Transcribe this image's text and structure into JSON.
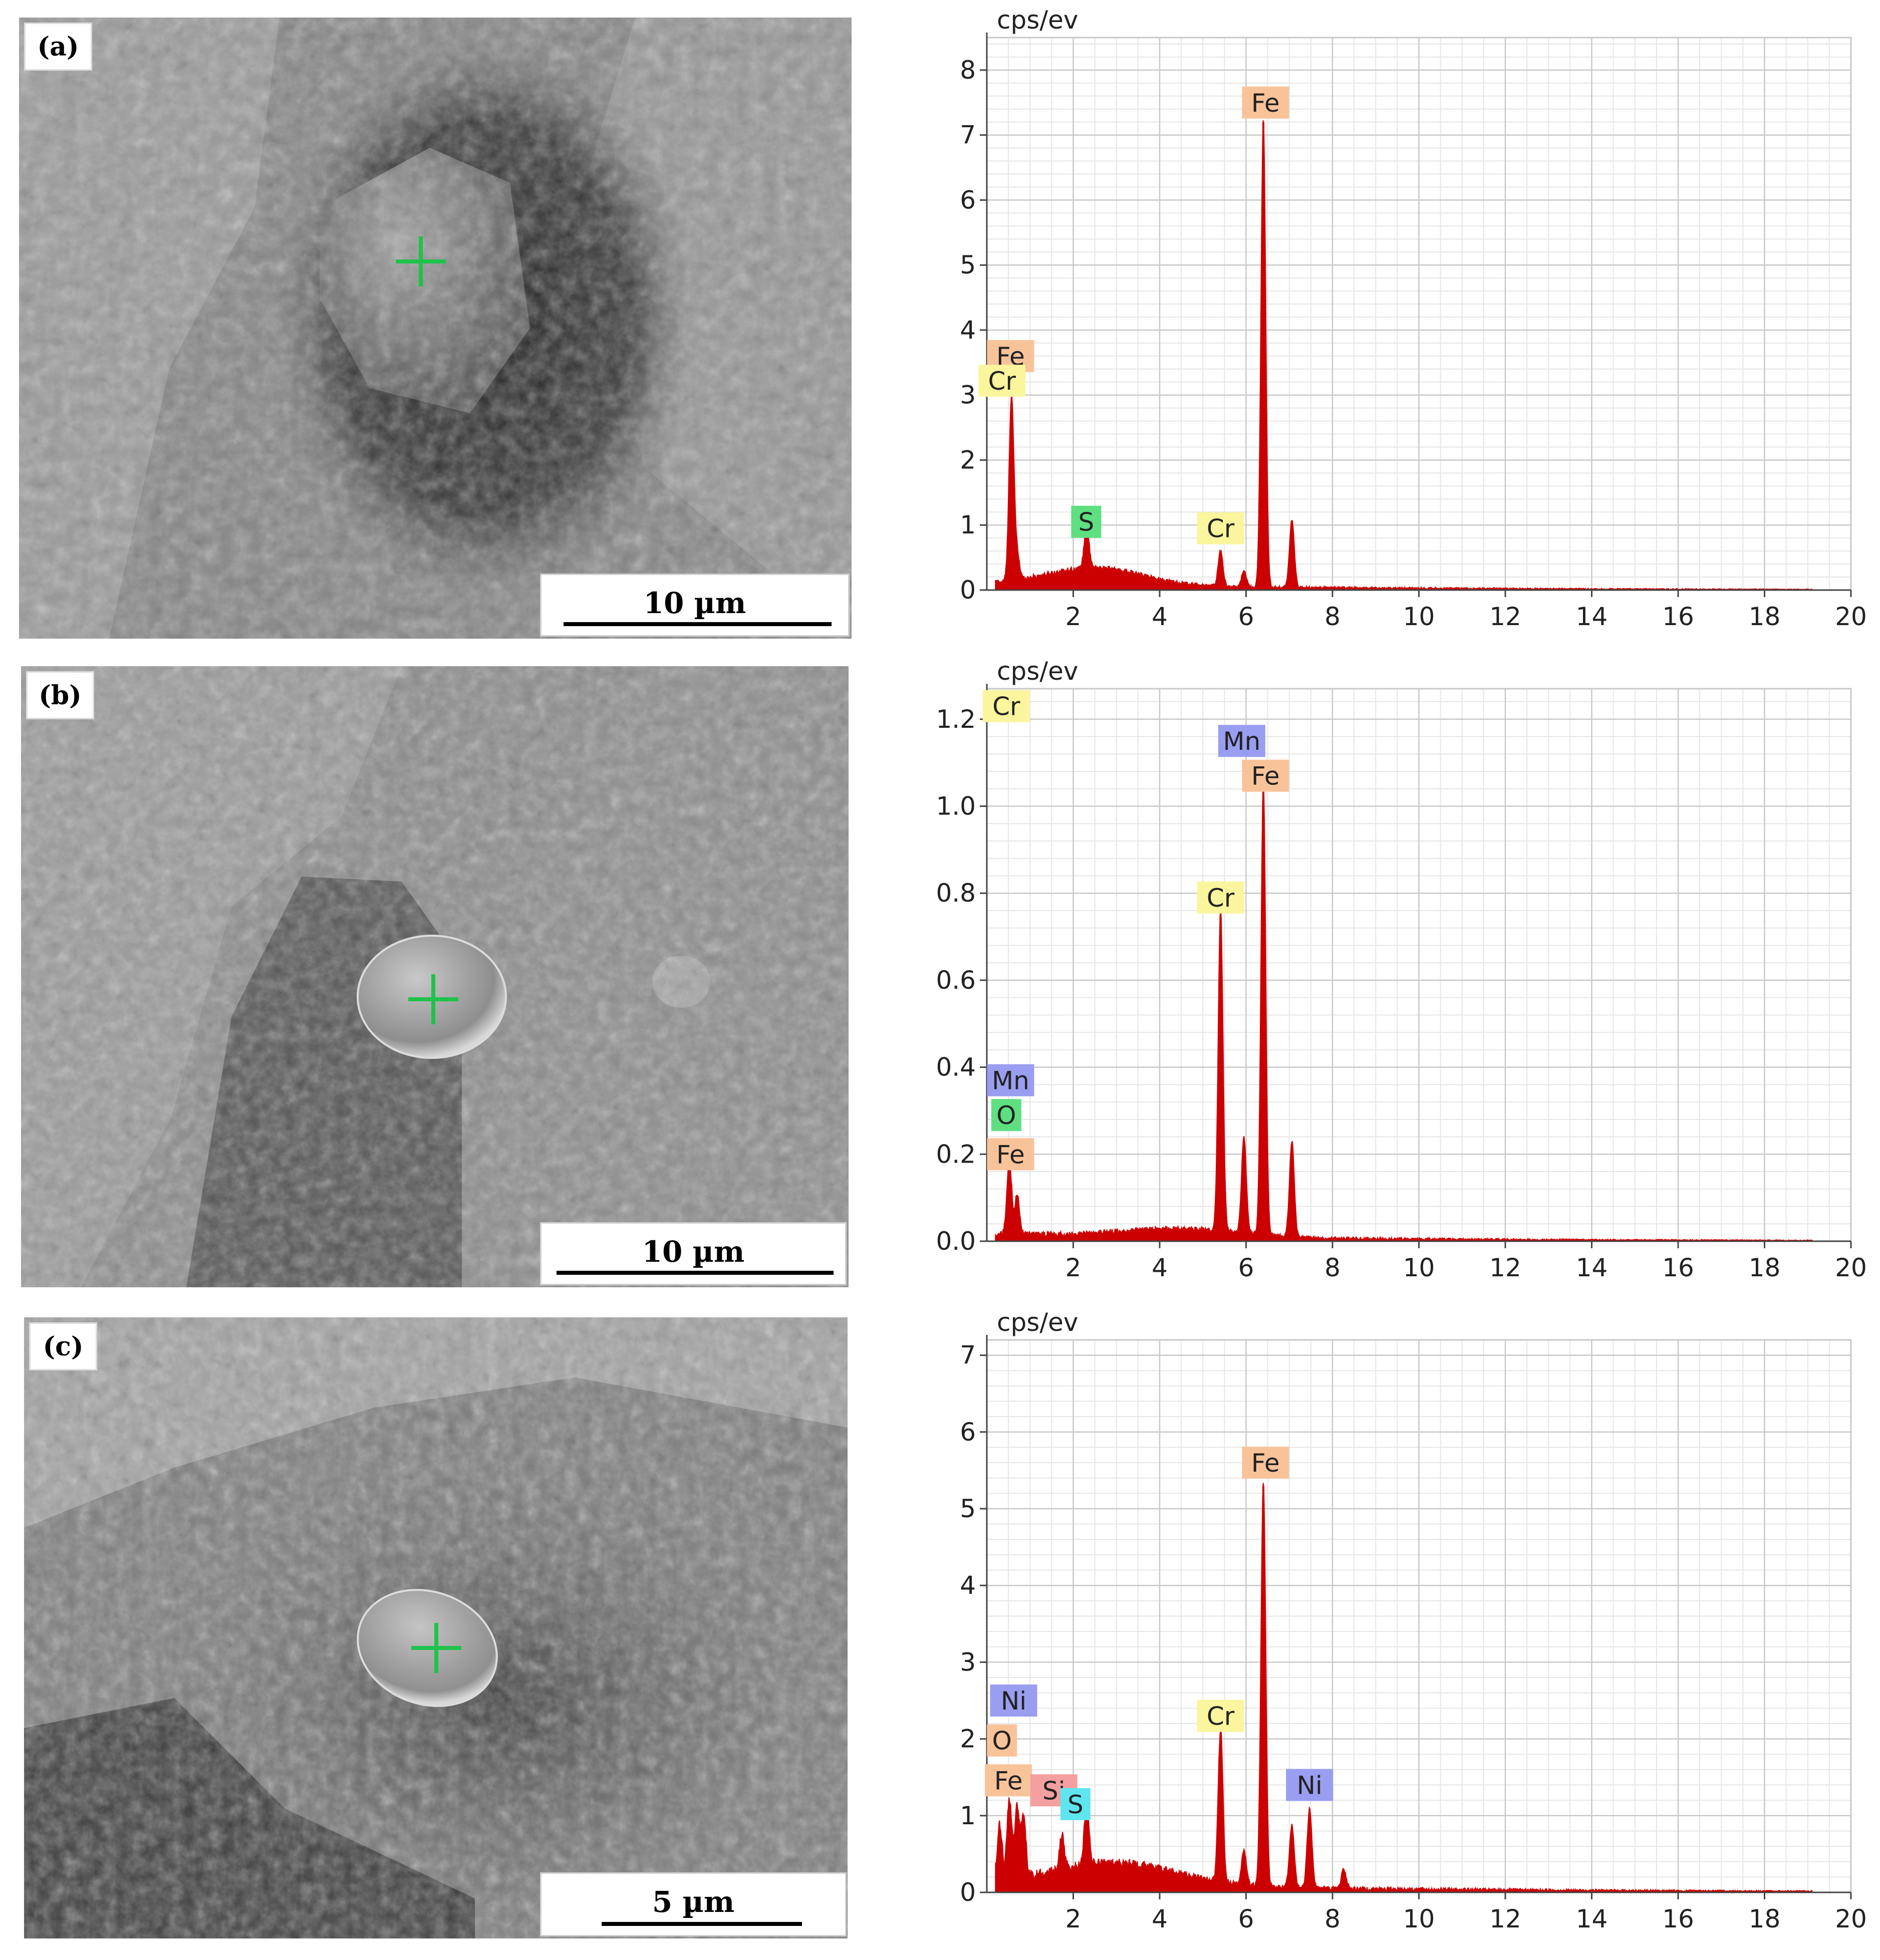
{
  "colors": {
    "spectrum": "#cc0000",
    "grid_major": "#c8c8c8",
    "grid_minor": "#e6e6e6",
    "axis": "#444444",
    "label_Fe": "#f9c39a",
    "label_Cr": "#fbf59e",
    "label_S_green": "#5ee080",
    "label_S_cyan": "#5fe5ef",
    "label_Mn": "#9a9ef0",
    "label_Ni": "#9a9ef0",
    "label_O_green": "#5ee080",
    "label_O_orange": "#f9c39a",
    "label_Si": "#f5a0a0",
    "crosshair": "#1fc24a"
  },
  "panels": [
    {
      "label": "(a)",
      "scalebar": "10 µm",
      "chart_data": {
        "type": "area",
        "ylabel": "cps/ev",
        "xlim": [
          0,
          20
        ],
        "ylim": [
          0,
          8.5
        ],
        "xticks": [
          2,
          4,
          6,
          8,
          10,
          12,
          14,
          16,
          18,
          20
        ],
        "xtick_labels": [
          "2",
          "4",
          "6",
          "8",
          "10",
          "12",
          "14",
          "16",
          "18",
          "20"
        ],
        "yticks": [
          0,
          1,
          2,
          3,
          4,
          5,
          6,
          7,
          8
        ],
        "ytick_labels": [
          "0",
          "1",
          "2",
          "3",
          "4",
          "5",
          "6",
          "7",
          "8"
        ],
        "background": 0.1,
        "background_hump": [
          {
            "center": 2.5,
            "height": 0.28,
            "width": 1.6
          }
        ],
        "peaks": [
          {
            "x": 0.57,
            "y": 2.85
          },
          {
            "x": 0.7,
            "y": 0.4
          },
          {
            "x": 2.31,
            "y": 0.65
          },
          {
            "x": 5.41,
            "y": 0.55
          },
          {
            "x": 5.95,
            "y": 0.25
          },
          {
            "x": 6.4,
            "y": 7.2
          },
          {
            "x": 7.06,
            "y": 1.05
          }
        ],
        "labels": [
          {
            "text": "Fe",
            "x": 0.55,
            "y": 3.6,
            "color": "label_Fe"
          },
          {
            "text": "Cr",
            "x": 0.35,
            "y": 3.22,
            "color": "label_Cr"
          },
          {
            "text": "S",
            "x": 2.3,
            "y": 1.05,
            "color": "label_S_green"
          },
          {
            "text": "Cr",
            "x": 5.41,
            "y": 0.95,
            "color": "label_Cr"
          },
          {
            "text": "Fe",
            "x": 6.45,
            "y": 7.5,
            "color": "label_Fe"
          }
        ]
      }
    },
    {
      "label": "(b)",
      "scalebar": "10 µm",
      "chart_data": {
        "type": "area",
        "ylabel": "cps/ev",
        "xlim": [
          0,
          20
        ],
        "ylim": [
          0,
          1.27
        ],
        "xticks": [
          2,
          4,
          6,
          8,
          10,
          12,
          14,
          16,
          18,
          20
        ],
        "xtick_labels": [
          "2",
          "4",
          "6",
          "8",
          "10",
          "12",
          "14",
          "16",
          "18",
          "20"
        ],
        "yticks": [
          0,
          0.2,
          0.4,
          0.6,
          0.8,
          1.0,
          1.2
        ],
        "ytick_labels": [
          "0.0",
          "0.2",
          "0.4",
          "0.6",
          "0.8",
          "1.0",
          "1.2"
        ],
        "background": 0.018,
        "background_hump": [
          {
            "center": 4.5,
            "height": 0.02,
            "width": 2.0
          }
        ],
        "peaks": [
          {
            "x": 0.52,
            "y": 0.17
          },
          {
            "x": 0.7,
            "y": 0.09
          },
          {
            "x": 5.41,
            "y": 0.74
          },
          {
            "x": 5.95,
            "y": 0.22
          },
          {
            "x": 6.4,
            "y": 1.04
          },
          {
            "x": 7.06,
            "y": 0.22
          }
        ],
        "labels": [
          {
            "text": "Cr",
            "x": 0.45,
            "y": 1.23,
            "color": "label_Cr"
          },
          {
            "text": "Mn",
            "x": 5.9,
            "y": 1.15,
            "color": "label_Mn"
          },
          {
            "text": "Fe",
            "x": 6.45,
            "y": 1.07,
            "color": "label_Fe"
          },
          {
            "text": "Cr",
            "x": 5.41,
            "y": 0.79,
            "color": "label_Cr"
          },
          {
            "text": "Mn",
            "x": 0.55,
            "y": 0.37,
            "color": "label_Mn"
          },
          {
            "text": "O",
            "x": 0.45,
            "y": 0.29,
            "color": "label_O_green"
          },
          {
            "text": "Fe",
            "x": 0.55,
            "y": 0.2,
            "color": "label_Fe"
          }
        ]
      }
    },
    {
      "label": "(c)",
      "scalebar": "5 µm",
      "chart_data": {
        "type": "area",
        "ylabel": "cps/ev",
        "xlim": [
          0,
          20
        ],
        "ylim": [
          0,
          7.2
        ],
        "xticks": [
          2,
          4,
          6,
          8,
          10,
          12,
          14,
          16,
          18,
          20
        ],
        "xtick_labels": [
          "2",
          "4",
          "6",
          "8",
          "10",
          "12",
          "14",
          "16",
          "18",
          "20"
        ],
        "yticks": [
          0,
          1,
          2,
          3,
          4,
          5,
          6,
          7
        ],
        "ytick_labels": [
          "0",
          "1",
          "2",
          "3",
          "4",
          "5",
          "6",
          "7"
        ],
        "background": 0.15,
        "background_hump": [
          {
            "center": 3.0,
            "height": 0.3,
            "width": 2.0
          }
        ],
        "peaks": [
          {
            "x": 0.3,
            "y": 0.7
          },
          {
            "x": 0.52,
            "y": 1.05
          },
          {
            "x": 0.7,
            "y": 0.9
          },
          {
            "x": 0.85,
            "y": 0.75
          },
          {
            "x": 1.74,
            "y": 0.45
          },
          {
            "x": 2.31,
            "y": 0.85
          },
          {
            "x": 5.41,
            "y": 2.0
          },
          {
            "x": 5.95,
            "y": 0.45
          },
          {
            "x": 6.4,
            "y": 5.3
          },
          {
            "x": 7.06,
            "y": 0.8
          },
          {
            "x": 7.47,
            "y": 1.05
          },
          {
            "x": 8.26,
            "y": 0.25
          }
        ],
        "labels": [
          {
            "text": "Ni",
            "x": 0.62,
            "y": 2.5,
            "color": "label_Ni"
          },
          {
            "text": "O",
            "x": 0.35,
            "y": 1.98,
            "color": "label_O_orange"
          },
          {
            "text": "Fe",
            "x": 0.5,
            "y": 1.46,
            "color": "label_Fe"
          },
          {
            "text": "Si",
            "x": 1.55,
            "y": 1.33,
            "color": "label_Si"
          },
          {
            "text": "S",
            "x": 2.05,
            "y": 1.15,
            "color": "label_S_cyan"
          },
          {
            "text": "Cr",
            "x": 5.41,
            "y": 2.3,
            "color": "label_Cr"
          },
          {
            "text": "Fe",
            "x": 6.45,
            "y": 5.6,
            "color": "label_Fe"
          },
          {
            "text": "Ni",
            "x": 7.47,
            "y": 1.4,
            "color": "label_Ni"
          }
        ]
      }
    }
  ]
}
